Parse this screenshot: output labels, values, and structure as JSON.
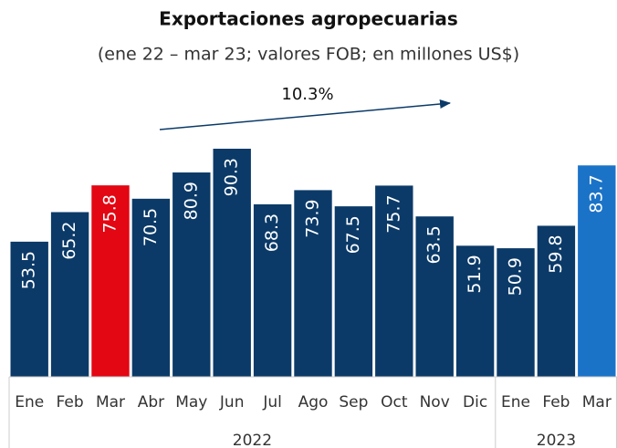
{
  "chart_data": {
    "type": "bar",
    "title": "Exportaciones agropecuarias",
    "subtitle": "(ene 22 – mar 23; valores FOB; en millones US$)",
    "annotation": "10.3%",
    "groups": [
      {
        "label": "2022",
        "categories": [
          "Ene",
          "Feb",
          "Mar",
          "Abr",
          "May",
          "Jun",
          "Jul",
          "Ago",
          "Sep",
          "Oct",
          "Nov",
          "Dic"
        ],
        "values": [
          53.5,
          65.2,
          75.8,
          70.5,
          80.9,
          90.3,
          68.3,
          73.9,
          67.5,
          75.7,
          63.5,
          51.9
        ],
        "colors": [
          "#0b3a68",
          "#0b3a68",
          "#e30613",
          "#0b3a68",
          "#0b3a68",
          "#0b3a68",
          "#0b3a68",
          "#0b3a68",
          "#0b3a68",
          "#0b3a68",
          "#0b3a68",
          "#0b3a68"
        ]
      },
      {
        "label": "2023",
        "categories": [
          "Ene",
          "Feb",
          "Mar"
        ],
        "values": [
          50.9,
          59.8,
          83.7
        ],
        "colors": [
          "#0b3a68",
          "#0b3a68",
          "#1b73c8"
        ]
      }
    ]
  }
}
